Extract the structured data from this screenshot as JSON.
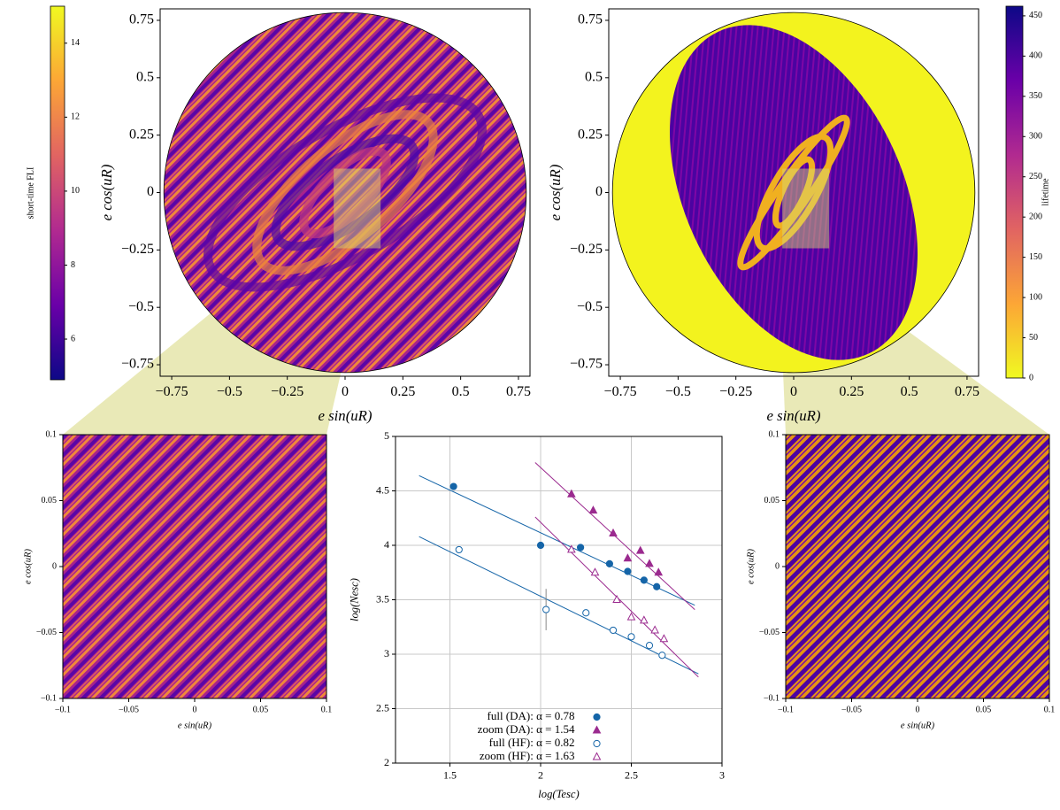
{
  "chart_data": [
    {
      "type": "map",
      "disk": true,
      "colormap": "plasma",
      "colormap_reversed": false,
      "xlabel": "e sin(uR)",
      "ylabel": "e cos(uR)",
      "xlim": [
        -0.8,
        0.8
      ],
      "ylim": [
        -0.8,
        0.8
      ],
      "xticks": [
        {
          "value": -0.75,
          "label": "−0.75"
        },
        {
          "value": -0.5,
          "label": "−0.5"
        },
        {
          "value": -0.25,
          "label": "−0.25"
        },
        0,
        0.25,
        0.5,
        0.75
      ],
      "yticks": [
        {
          "value": -0.75,
          "label": "−0.75"
        },
        {
          "value": -0.5,
          "label": "−0.5"
        },
        {
          "value": -0.25,
          "label": "−0.25"
        },
        0,
        0.25,
        0.5,
        0.75
      ],
      "colorbar": {
        "label": "short-time FLI",
        "lim": [
          4.9,
          15
        ],
        "ticks": [
          6,
          8,
          10,
          12,
          14
        ]
      }
    },
    {
      "type": "map",
      "disk": true,
      "colormap": "plasma",
      "colormap_reversed": true,
      "xlabel": "e sin(uR)",
      "ylabel": "e cos(uR)",
      "xlim": [
        -0.8,
        0.8
      ],
      "ylim": [
        -0.8,
        0.8
      ],
      "xticks": [
        {
          "value": -0.75,
          "label": "−0.75"
        },
        {
          "value": -0.5,
          "label": "−0.5"
        },
        {
          "value": -0.25,
          "label": "−0.25"
        },
        0,
        0.25,
        0.5,
        0.75
      ],
      "yticks": [
        {
          "value": -0.75,
          "label": "−0.75"
        },
        {
          "value": -0.5,
          "label": "−0.5"
        },
        {
          "value": -0.25,
          "label": "−0.25"
        },
        0,
        0.25,
        0.5,
        0.75
      ],
      "colorbar": {
        "label": "lifetime",
        "lim": [
          0,
          462
        ],
        "ticks": [
          0,
          50,
          100,
          150,
          200,
          250,
          300,
          350,
          400,
          450
        ]
      }
    },
    {
      "type": "map",
      "disk": false,
      "colormap": "plasma",
      "colormap_reversed": false,
      "xlabel": "e sin(uR)",
      "ylabel": "e cos(uR)",
      "xlim": [
        -0.1,
        0.1
      ],
      "ylim": [
        -0.1,
        0.1
      ],
      "xticks": [
        {
          "value": -0.1,
          "label": "−0.1"
        },
        {
          "value": -0.05,
          "label": "−0.05"
        },
        0,
        0.05,
        0.1
      ],
      "yticks": [
        {
          "value": -0.1,
          "label": "−0.1"
        },
        {
          "value": -0.05,
          "label": "−0.05"
        },
        0,
        0.05,
        0.1
      ]
    },
    {
      "type": "scatter",
      "xlabel": "log(Tesc)",
      "ylabel": "log(Nesc)",
      "xlim": [
        1.2,
        3
      ],
      "ylim": [
        2,
        5
      ],
      "xticks": [
        1.5,
        2,
        2.5,
        3
      ],
      "yticks": [
        2,
        2.5,
        3,
        3.5,
        4,
        4.5,
        5
      ],
      "grid": true,
      "legend": "lower-center",
      "series": [
        {
          "name": "full (DA): α = 0.78",
          "color": "#1565a8",
          "marker": "circle",
          "filled": true,
          "x": [
            1.52,
            2.0,
            2.22,
            2.38,
            2.48,
            2.57,
            2.64
          ],
          "values": [
            4.54,
            4.0,
            3.98,
            3.83,
            3.76,
            3.68,
            3.62
          ],
          "fit": {
            "x": [
              1.33,
              2.85
            ],
            "y": [
              4.64,
              3.45
            ]
          }
        },
        {
          "name": "zoom (DA): α = 1.54",
          "color": "#9b2a8f",
          "marker": "triangle",
          "filled": true,
          "x": [
            2.17,
            2.29,
            2.4,
            2.48,
            2.55,
            2.6,
            2.65
          ],
          "values": [
            4.47,
            4.32,
            4.11,
            3.88,
            3.95,
            3.83,
            3.75
          ],
          "fit": {
            "x": [
              1.97,
              2.85
            ],
            "y": [
              4.76,
              3.41
            ]
          }
        },
        {
          "name": "full (HF): α = 0.82",
          "color": "#1565a8",
          "marker": "circle",
          "filled": false,
          "x": [
            1.55,
            2.03,
            2.25,
            2.4,
            2.5,
            2.6,
            2.67
          ],
          "values": [
            3.96,
            3.41,
            3.38,
            3.22,
            3.16,
            3.08,
            2.99
          ],
          "errors": [
            null,
            0.19,
            null,
            null,
            null,
            null,
            null
          ],
          "fit": {
            "x": [
              1.33,
              2.87
            ],
            "y": [
              4.08,
              2.82
            ]
          }
        },
        {
          "name": "zoom (HF): α = 1.63",
          "color": "#9b2a8f",
          "marker": "triangle",
          "filled": false,
          "x": [
            2.17,
            2.3,
            2.42,
            2.5,
            2.57,
            2.63,
            2.68
          ],
          "values": [
            3.96,
            3.75,
            3.5,
            3.34,
            3.31,
            3.22,
            3.14
          ],
          "fit": {
            "x": [
              1.97,
              2.87
            ],
            "y": [
              4.26,
              2.79
            ]
          }
        }
      ]
    },
    {
      "type": "map",
      "disk": false,
      "colormap": "plasma",
      "colormap_reversed": true,
      "xlabel": "e sin(uR)",
      "ylabel": "e cos(uR)",
      "xlim": [
        -0.1,
        0.1
      ],
      "ylim": [
        -0.1,
        0.1
      ],
      "xticks": [
        {
          "value": -0.1,
          "label": "−0.1"
        },
        {
          "value": -0.05,
          "label": "−0.05"
        },
        0,
        0.05,
        0.1
      ],
      "yticks": [
        {
          "value": -0.1,
          "label": "−0.1"
        },
        {
          "value": -0.05,
          "label": "−0.05"
        },
        0,
        0.05,
        0.1
      ]
    }
  ]
}
